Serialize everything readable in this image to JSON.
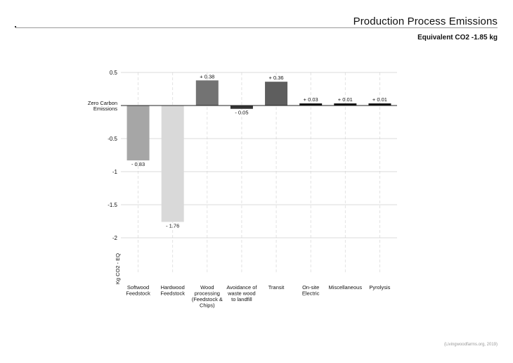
{
  "header": {
    "title": "Production Process Emissions",
    "subtitle": "Equivalent CO2 -1.85 kg",
    "credit": "(Livingwoodfarms.org, 2019)"
  },
  "chart_data": {
    "type": "bar",
    "title": "Production Process Emissions",
    "subtitle": "Equivalent CO2 -1.85 kg",
    "ylabel": "Kg CO2 - EQ",
    "zero_label": [
      "Zero Carbon",
      "Emissions"
    ],
    "ylim": [
      -2,
      0.5
    ],
    "yticks": [
      {
        "value": 0.5,
        "label": "0.5"
      },
      {
        "value": -0.5,
        "label": "-0.5"
      },
      {
        "value": -1,
        "label": "-1"
      },
      {
        "value": -1.5,
        "label": "-1.5"
      },
      {
        "value": -2,
        "label": "-2"
      }
    ],
    "grid": true,
    "categories": [
      [
        "Softwood",
        "Feedstock"
      ],
      [
        "Hardwood",
        "Feedstock"
      ],
      [
        "Wood",
        "processing",
        "(Feedstock &",
        "Chips)"
      ],
      [
        "Avoidance of",
        "waste wood",
        "to landfill"
      ],
      [
        "Transit"
      ],
      [
        "On-site",
        "Electric"
      ],
      [
        "Miscellaneous"
      ],
      [
        "Pyrolysis"
      ]
    ],
    "values": [
      -0.83,
      -1.76,
      0.38,
      -0.05,
      0.36,
      0.03,
      0.01,
      0.01
    ],
    "value_labels": [
      "- 0.83",
      "- 1.76",
      "+ 0.38",
      "- 0.05",
      "+ 0.36",
      "+ 0.03",
      "+ 0.01",
      "+ 0.01"
    ],
    "colors": [
      "#a6a6a6",
      "#d9d9d9",
      "#737373",
      "#333333",
      "#5e5e5e",
      "#111111",
      "#111111",
      "#111111"
    ]
  }
}
